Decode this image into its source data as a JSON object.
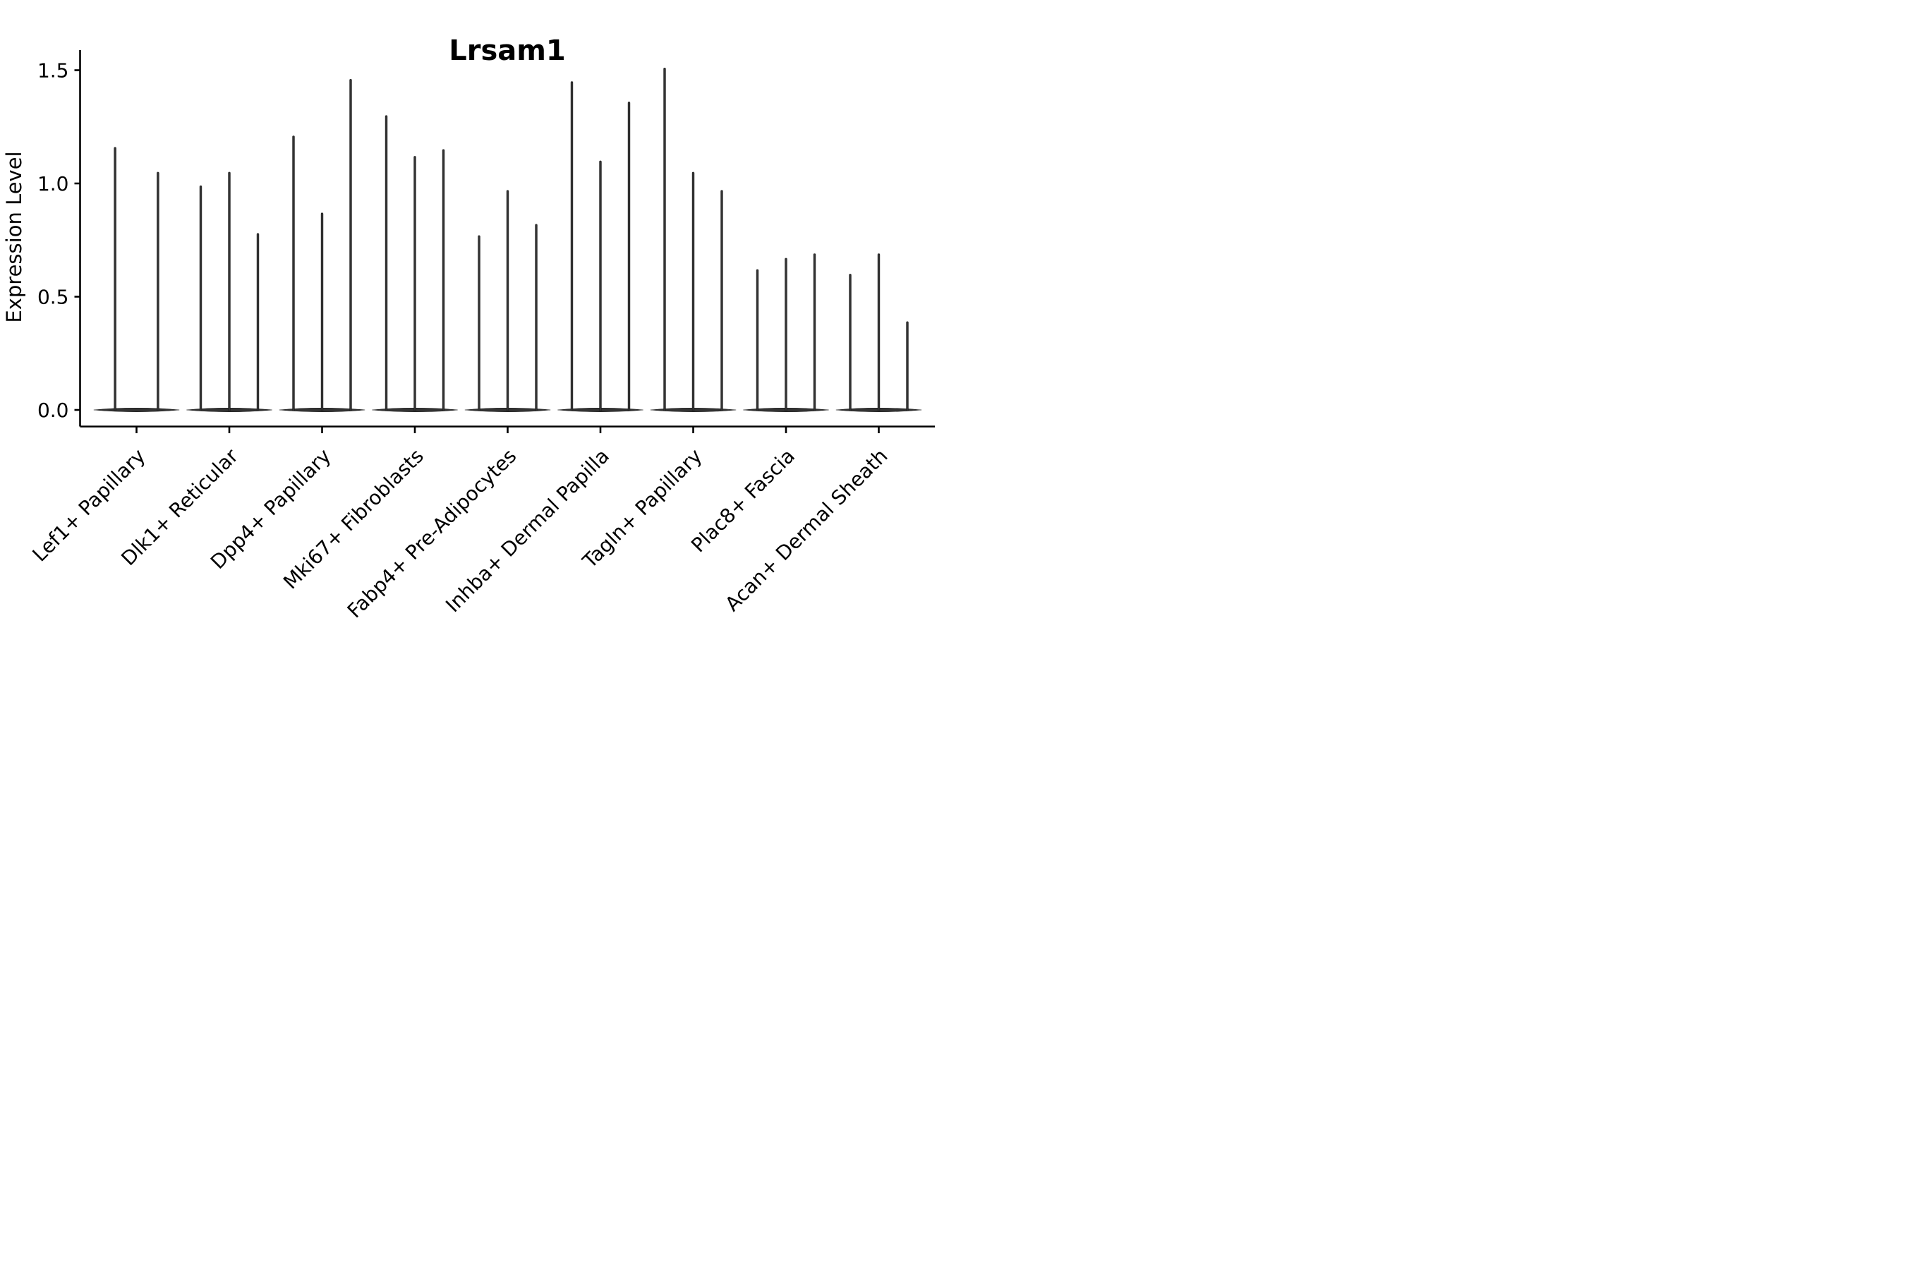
{
  "page": {
    "background_color": "#ffffff"
  },
  "chart_data": {
    "type": "violin",
    "title": "Lrsam1",
    "xlabel": "",
    "ylabel": "Expression Level",
    "yticks": [
      0.0,
      0.5,
      1.0,
      1.5
    ],
    "ylim": [
      0.0,
      1.6
    ],
    "grid": false,
    "legend_position": "none",
    "violin_fill": "#333333",
    "violin_edge": "#1c1c1c",
    "axis_color": "#000000",
    "baseline_value": 0.0,
    "shape_note": "each violin is a thin spike rising from a wide flat base of mass at expression level 0 up to its maximum value",
    "categories": [
      "Lef1+ Papillary",
      "Dlk1+ Reticular",
      "Dpp4+ Papillary",
      "Mki67+ Fibroblasts",
      "Fabp4+ Pre-Adipocytes",
      "Inhba+ Dermal Papilla",
      "Tagln+ Papillary",
      "Plac8+ Fascia",
      "Acan+ Dermal Sheath"
    ],
    "groups": [
      {
        "category": "Lef1+ Papillary",
        "violin_maxima": [
          1.16,
          1.05
        ]
      },
      {
        "category": "Dlk1+ Reticular",
        "violin_maxima": [
          0.99,
          1.05,
          0.78
        ]
      },
      {
        "category": "Dpp4+ Papillary",
        "violin_maxima": [
          1.21,
          0.87,
          1.46
        ]
      },
      {
        "category": "Mki67+ Fibroblasts",
        "violin_maxima": [
          1.3,
          1.12,
          1.15
        ]
      },
      {
        "category": "Fabp4+ Pre-Adipocytes",
        "violin_maxima": [
          0.77,
          0.97,
          0.82
        ]
      },
      {
        "category": "Inhba+ Dermal Papilla",
        "violin_maxima": [
          1.45,
          1.1,
          1.36
        ]
      },
      {
        "category": "Tagln+ Papillary",
        "violin_maxima": [
          1.51,
          1.05,
          0.97
        ]
      },
      {
        "category": "Plac8+ Fascia",
        "violin_maxima": [
          0.62,
          0.67,
          0.69
        ]
      },
      {
        "category": "Acan+ Dermal Sheath",
        "violin_maxima": [
          0.6,
          0.69,
          0.39
        ]
      }
    ]
  }
}
